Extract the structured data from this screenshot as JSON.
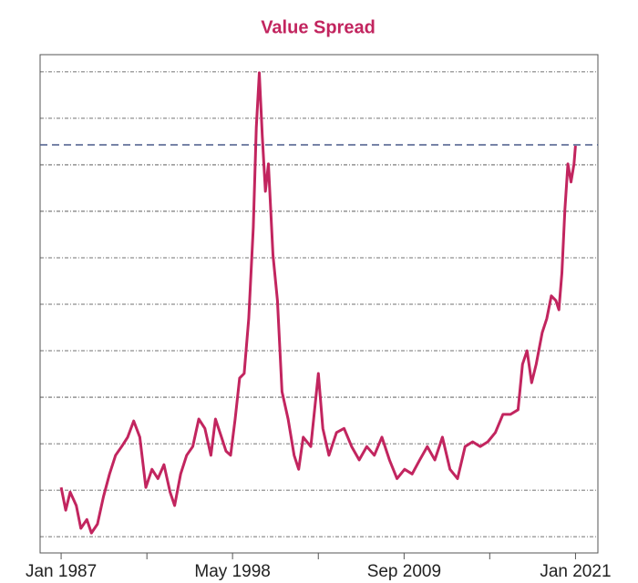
{
  "chart_data": {
    "type": "line",
    "title": "Value Spread",
    "xlim": [
      1985.61,
      2022.48
    ],
    "ylim": [
      -0.35,
      10.37
    ],
    "xticks": [
      {
        "value": 1987.0,
        "label": "Jan 1987"
      },
      {
        "value": 1998.33,
        "label": "May 1998"
      },
      {
        "value": 2009.67,
        "label": "Sep 2009"
      },
      {
        "value": 2021.0,
        "label": "Jan 2021"
      }
    ],
    "xminorticks": [
      1992.67,
      2004.0,
      2015.33
    ],
    "ygridlines": [
      0,
      1,
      2,
      3,
      4,
      5,
      6,
      7,
      8,
      9,
      10
    ],
    "grid": true,
    "reference_line": {
      "value": 8.43,
      "color": "#4a5a8a"
    },
    "series": [
      {
        "name": "Value Spread",
        "color": "#c2255f",
        "x": [
          1987.0,
          1987.3,
          1987.6,
          1988.0,
          1988.3,
          1988.7,
          1989.0,
          1989.4,
          1989.8,
          1990.2,
          1990.6,
          1991.0,
          1991.4,
          1991.8,
          1992.2,
          1992.6,
          1993.0,
          1993.4,
          1993.8,
          1994.2,
          1994.5,
          1994.9,
          1995.3,
          1995.7,
          1996.1,
          1996.5,
          1996.9,
          1997.2,
          1997.6,
          1997.9,
          1998.2,
          1998.5,
          1998.8,
          1999.1,
          1999.4,
          1999.7,
          1999.9,
          2000.1,
          2000.3,
          2000.5,
          2000.7,
          2001.0,
          2001.3,
          2001.6,
          2002.0,
          2002.4,
          2002.7,
          2003.0,
          2003.5,
          2004.0,
          2004.3,
          2004.7,
          2005.2,
          2005.7,
          2006.2,
          2006.7,
          2007.2,
          2007.7,
          2008.2,
          2008.7,
          2009.2,
          2009.7,
          2010.2,
          2010.7,
          2011.2,
          2011.7,
          2012.2,
          2012.7,
          2013.2,
          2013.7,
          2014.2,
          2014.7,
          2015.2,
          2015.7,
          2016.2,
          2016.7,
          2017.2,
          2017.5,
          2017.8,
          2018.1,
          2018.4,
          2018.8,
          2019.1,
          2019.4,
          2019.7,
          2019.9,
          2020.1,
          2020.3,
          2020.5,
          2020.7,
          2020.9,
          2021.0
        ],
        "values": [
          1.06,
          0.57,
          0.96,
          0.67,
          0.18,
          0.37,
          0.08,
          0.27,
          0.86,
          1.35,
          1.75,
          1.94,
          2.14,
          2.49,
          2.14,
          1.06,
          1.45,
          1.25,
          1.55,
          0.96,
          0.67,
          1.35,
          1.75,
          1.94,
          2.53,
          2.33,
          1.75,
          2.53,
          2.14,
          1.84,
          1.75,
          2.53,
          3.41,
          3.51,
          4.69,
          6.65,
          8.8,
          9.98,
          8.61,
          7.43,
          8.02,
          6.06,
          5.08,
          3.12,
          2.53,
          1.75,
          1.45,
          2.14,
          1.94,
          3.51,
          2.33,
          1.75,
          2.24,
          2.33,
          1.94,
          1.65,
          1.94,
          1.75,
          2.14,
          1.65,
          1.25,
          1.45,
          1.35,
          1.65,
          1.94,
          1.65,
          2.14,
          1.45,
          1.25,
          1.94,
          2.04,
          1.94,
          2.04,
          2.24,
          2.63,
          2.63,
          2.73,
          3.71,
          4.0,
          3.31,
          3.71,
          4.39,
          4.69,
          5.18,
          5.08,
          4.88,
          5.67,
          7.04,
          8.02,
          7.63,
          8.02,
          8.41
        ]
      }
    ]
  }
}
